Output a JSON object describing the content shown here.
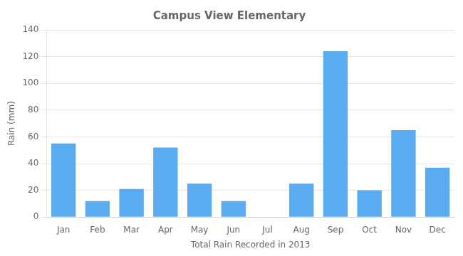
{
  "chart_data": {
    "type": "bar",
    "title": "Campus View Elementary",
    "xlabel": "Total Rain Recorded in 2013",
    "ylabel": "Rain (mm)",
    "categories": [
      "Jan",
      "Feb",
      "Mar",
      "Apr",
      "May",
      "Jun",
      "Jul",
      "Aug",
      "Sep",
      "Oct",
      "Nov",
      "Dec"
    ],
    "values": [
      55,
      12,
      21,
      52,
      25,
      12,
      0,
      25,
      124,
      20,
      65,
      37
    ],
    "color": "#5aabf0",
    "ylim": [
      0,
      140
    ],
    "yticks": [
      0,
      20,
      40,
      60,
      80,
      100,
      120,
      140
    ],
    "grid": true
  }
}
